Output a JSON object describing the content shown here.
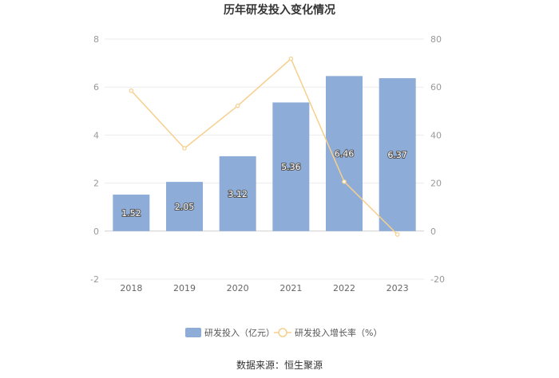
{
  "chart_data": {
    "type": "bar",
    "title": "历年研发投入变化情况",
    "categories": [
      "2018",
      "2019",
      "2020",
      "2021",
      "2022",
      "2023"
    ],
    "series": [
      {
        "name": "研发投入（亿元）",
        "type": "bar",
        "axis": "left",
        "color": "#8eacd8",
        "values": [
          1.52,
          2.05,
          3.12,
          5.36,
          6.46,
          6.37
        ],
        "labels": [
          "1.52",
          "2.05",
          "3.12",
          "5.36",
          "6.46",
          "6.37"
        ]
      },
      {
        "name": "研发投入增长率（%）",
        "type": "line",
        "axis": "right",
        "color": "#f6cf8c",
        "values": [
          58.5,
          34.5,
          52.2,
          71.8,
          20.6,
          -1.4
        ]
      }
    ],
    "y_left": {
      "min": -2,
      "max": 8,
      "ticks": [
        -2,
        0,
        2,
        4,
        6,
        8
      ]
    },
    "y_right": {
      "min": -20,
      "max": 80,
      "ticks": [
        -20,
        0,
        20,
        40,
        60,
        80
      ]
    },
    "grid": true,
    "legend_position": "bottom",
    "source": "数据来源：恒生聚源"
  }
}
